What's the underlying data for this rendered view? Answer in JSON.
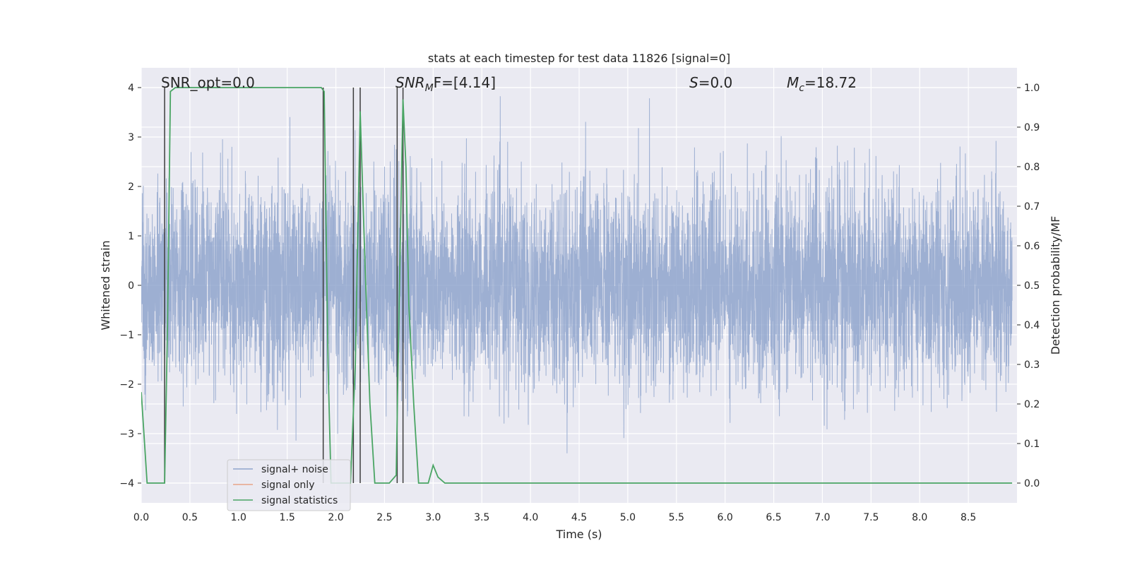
{
  "chart_data": {
    "type": "line",
    "title": "stats at each timestep for test data 11826 [signal=0]",
    "xlabel": "Time (s)",
    "ylabel": "Whitened strain",
    "ylabel_right": "Detection probability/MF",
    "xlim": [
      0.0,
      9.0
    ],
    "ylim": [
      -4.4,
      4.4
    ],
    "ylim_right": [
      -0.05,
      1.05
    ],
    "xticks": [
      "0.0",
      "0.5",
      "1.0",
      "1.5",
      "2.0",
      "2.5",
      "3.0",
      "3.5",
      "4.0",
      "4.5",
      "5.0",
      "5.5",
      "6.0",
      "6.5",
      "7.0",
      "7.5",
      "8.0",
      "8.5"
    ],
    "yticks": [
      "4",
      "3",
      "2",
      "1",
      "0",
      "−1",
      "−2",
      "−3",
      "−4"
    ],
    "yticks_right": [
      "1.0",
      "0.9",
      "0.8",
      "0.7",
      "0.6",
      "0.5",
      "0.4",
      "0.3",
      "0.2",
      "0.1",
      "0.0"
    ],
    "grid": true,
    "annotations": {
      "snr_opt": "SNR_opt=0.0",
      "snr_mf_sym": "SNR",
      "snr_mf_sub": "M",
      "snr_mf_rest": "F=[4.14]",
      "s_sym": "S",
      "s_rest": "=0.0",
      "mc_sym": "M",
      "mc_sub": "c",
      "mc_rest": "=18.72"
    },
    "vertical_lines_x": [
      0.24,
      1.87,
      2.18,
      2.25,
      2.63,
      2.69
    ],
    "series": [
      {
        "name": "signal+ noise",
        "color": "#8fa5cc",
        "axis": "left",
        "description": "whitened noise, approx std 1, peaks near +/-3.6",
        "amplitude_range": [
          -3.95,
          4.0
        ]
      },
      {
        "name": "signal only",
        "color": "#e8a488",
        "axis": "left",
        "values": []
      },
      {
        "name": "signal statistics",
        "color": "#4aa564",
        "axis": "right",
        "x": [
          0.0,
          0.06,
          0.12,
          0.24,
          0.27,
          0.3,
          0.35,
          0.5,
          1.0,
          1.5,
          1.85,
          1.88,
          1.92,
          1.95,
          1.98,
          2.05,
          2.1,
          2.15,
          2.2,
          2.25,
          2.3,
          2.35,
          2.4,
          2.45,
          2.55,
          2.62,
          2.65,
          2.69,
          2.72,
          2.75,
          2.8,
          2.85,
          2.9,
          2.95,
          3.0,
          3.05,
          3.12,
          3.3,
          4.0,
          5.0,
          6.0,
          7.0,
          8.0,
          8.95
        ],
        "values": [
          0.23,
          0.0,
          0.0,
          0.0,
          0.4,
          0.99,
          1.0,
          1.0,
          1.0,
          1.0,
          1.0,
          0.99,
          0.3,
          0.0,
          0.0,
          0.0,
          0.0,
          0.0,
          0.3,
          0.94,
          0.55,
          0.2,
          0.0,
          0.0,
          0.0,
          0.02,
          0.45,
          0.97,
          0.8,
          0.45,
          0.2,
          0.0,
          0.0,
          0.0,
          0.045,
          0.015,
          0.0,
          0.0,
          0.0,
          0.0,
          0.0,
          0.0,
          0.0,
          0.0
        ]
      }
    ],
    "legend": {
      "location": "lower-left",
      "entries": [
        "signal+ noise",
        "signal only",
        "signal statistics"
      ]
    }
  },
  "colors": {
    "background": "#ffffff",
    "plot_area": "#eaeaf2",
    "grid": "#ffffff",
    "noise": "#8fa5cc",
    "signal_only": "#e8a488",
    "statistics": "#4aa564",
    "vline": "#3c3c3c",
    "text": "#262626"
  }
}
